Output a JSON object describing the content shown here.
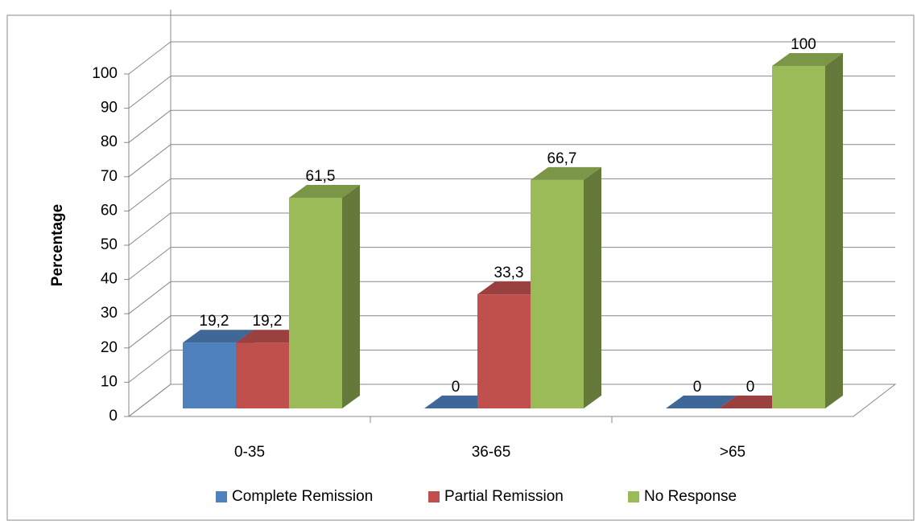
{
  "chart_data": {
    "type": "bar",
    "y_label": "Percentage",
    "categories": [
      "0-35",
      "36-65",
      ">65"
    ],
    "series": [
      {
        "name": "Complete Remission",
        "color": "#4f81bd",
        "values": [
          19.2,
          0,
          0
        ],
        "value_labels": [
          "19,2",
          "0",
          "0"
        ]
      },
      {
        "name": "Partial Remission",
        "color": "#c0504d",
        "values": [
          19.2,
          33.3,
          0
        ],
        "value_labels": [
          "19,2",
          "33,3",
          "0"
        ]
      },
      {
        "name": "No Response",
        "color": "#9bbb59",
        "values": [
          61.5,
          66.7,
          100
        ],
        "value_labels": [
          "61,5",
          "66,7",
          "100"
        ]
      }
    ],
    "ylim": [
      0,
      100
    ],
    "yticks": [
      0,
      10,
      20,
      30,
      40,
      50,
      60,
      70,
      80,
      90,
      100
    ],
    "grid": true,
    "legend": "bottom"
  }
}
